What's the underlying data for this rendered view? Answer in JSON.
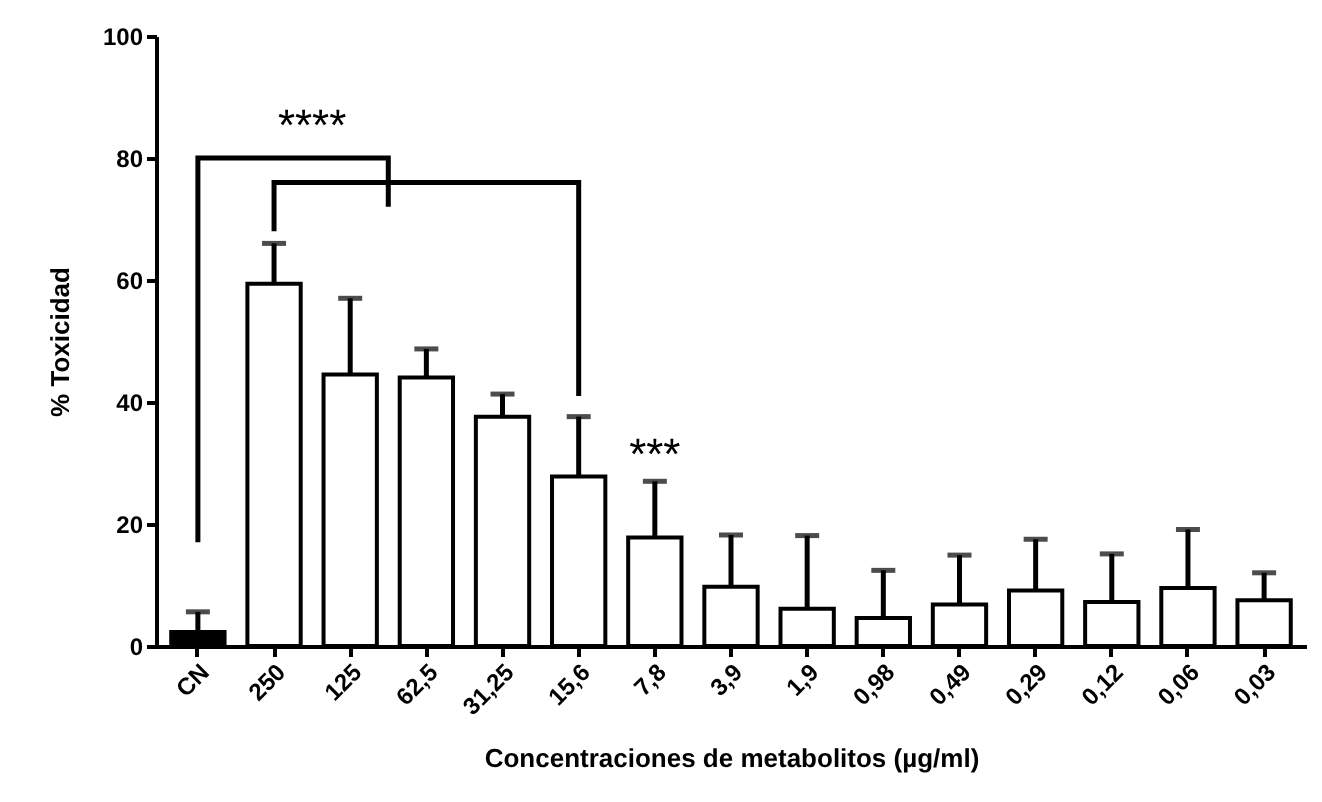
{
  "chart_data": {
    "type": "bar",
    "xlabel": "Concentraciones de metabolitos  (µg/ml)",
    "ylabel": "% Toxicidad",
    "categories": [
      "CN",
      "250",
      "125",
      "62,5",
      "31,25",
      "15,6",
      "7,8",
      "3,9",
      "1,9",
      "0,98",
      "0,49",
      "0,29",
      "0,12",
      "0,06",
      "0,03"
    ],
    "values": [
      2.3,
      59.4,
      44.5,
      44,
      37.6,
      27.8,
      17.8,
      9.7,
      6.1,
      4.6,
      6.8,
      9.1,
      7.2,
      9.5,
      7.5
    ],
    "errors": [
      [
        2.3,
        5.6
      ],
      [
        59.4,
        66
      ],
      [
        44.5,
        57
      ],
      [
        44,
        48.7
      ],
      [
        37.6,
        41.3
      ],
      [
        27.8,
        37.6
      ],
      [
        17.8,
        27
      ],
      [
        9.7,
        18.2
      ],
      [
        6.1,
        18.1
      ],
      [
        4.6,
        12.4
      ],
      [
        6.8,
        14.9
      ],
      [
        9.1,
        17.5
      ],
      [
        7.2,
        15.1
      ],
      [
        9.5,
        19.1
      ],
      [
        7.5,
        12
      ]
    ],
    "colors": [
      "#000000",
      "#ffffff",
      "#ffffff",
      "#ffffff",
      "#ffffff",
      "#ffffff",
      "#ffffff",
      "#ffffff",
      "#ffffff",
      "#ffffff",
      "#ffffff",
      "#ffffff",
      "#ffffff",
      "#ffffff",
      "#ffffff"
    ],
    "ylim": [
      0,
      100
    ],
    "yticks": [
      0,
      20,
      40,
      60,
      80,
      100
    ],
    "grid": false,
    "annotations": [
      "****",
      "***"
    ]
  }
}
